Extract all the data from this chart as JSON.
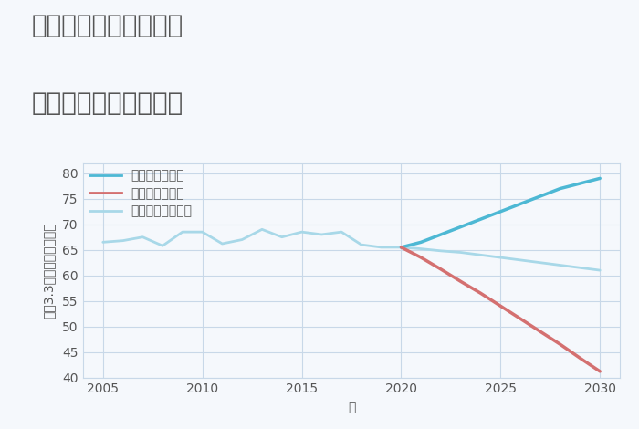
{
  "title_line1": "岐阜県岐阜市金園町の",
  "title_line2": "中古戸建ての価格推移",
  "xlabel": "年",
  "ylabel": "坪（3.3㎡）単価（万円）",
  "xlim": [
    2004,
    2031
  ],
  "ylim": [
    40,
    82
  ],
  "yticks": [
    40,
    45,
    50,
    55,
    60,
    65,
    70,
    75,
    80
  ],
  "xticks": [
    2005,
    2010,
    2015,
    2020,
    2025,
    2030
  ],
  "historical_years": [
    2005,
    2006,
    2007,
    2008,
    2009,
    2010,
    2011,
    2012,
    2013,
    2014,
    2015,
    2016,
    2017,
    2018,
    2019,
    2020
  ],
  "historical_values": [
    66.5,
    66.8,
    67.5,
    65.8,
    68.5,
    68.5,
    66.2,
    67.0,
    69.0,
    67.5,
    68.5,
    68.0,
    68.5,
    66.0,
    65.5,
    65.5
  ],
  "future_years": [
    2020,
    2021,
    2022,
    2023,
    2024,
    2025,
    2026,
    2027,
    2028,
    2029,
    2030
  ],
  "good_values": [
    65.5,
    66.5,
    68.0,
    69.5,
    71.0,
    72.5,
    74.0,
    75.5,
    77.0,
    78.0,
    79.0
  ],
  "bad_values": [
    65.5,
    63.5,
    61.2,
    58.8,
    56.5,
    54.0,
    51.5,
    49.0,
    46.5,
    43.8,
    41.2
  ],
  "normal_values": [
    65.5,
    65.2,
    64.8,
    64.5,
    64.0,
    63.5,
    63.0,
    62.5,
    62.0,
    61.5,
    61.0
  ],
  "good_color": "#4db8d4",
  "bad_color": "#d47070",
  "normal_color": "#a8d8e8",
  "historical_color": "#a8d8e8",
  "background_color": "#f5f8fc",
  "grid_color": "#c8d8e8",
  "title_color": "#555555",
  "legend_good": "グッドシナリオ",
  "legend_bad": "バッドシナリオ",
  "legend_normal": "ノーマルシナリオ",
  "title_fontsize": 20,
  "axis_label_fontsize": 10,
  "tick_fontsize": 10,
  "legend_fontsize": 10
}
